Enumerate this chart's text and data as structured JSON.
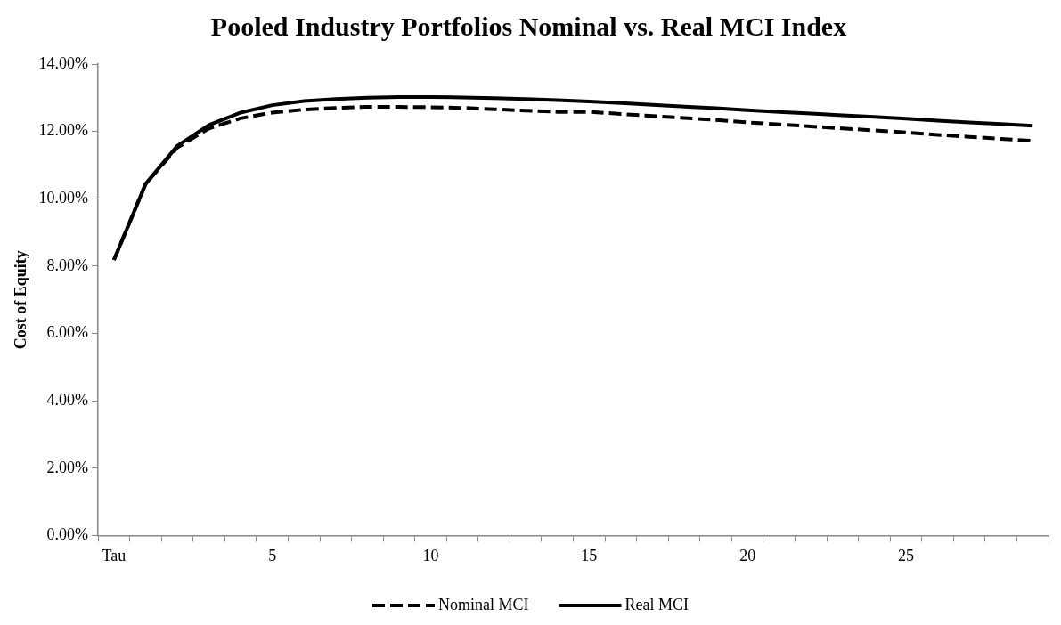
{
  "chart_data": {
    "type": "line",
    "title": "Pooled Industry Portfolios Nominal vs. Real MCI Index",
    "ylabel": "Cost of Equity",
    "categories": [
      "Tau",
      null,
      null,
      null,
      null,
      "5",
      null,
      null,
      null,
      null,
      "10",
      null,
      null,
      null,
      null,
      "15",
      null,
      null,
      null,
      null,
      "20",
      null,
      null,
      null,
      null,
      "25",
      null,
      null,
      null,
      null
    ],
    "series": [
      {
        "name": "Nominal MCI",
        "color": "#000000",
        "line_style": "dashed",
        "values": [
          8.18,
          10.44,
          11.52,
          12.09,
          12.39,
          12.56,
          12.65,
          12.7,
          12.73,
          12.73,
          12.72,
          12.7,
          12.66,
          12.62,
          12.58,
          12.58,
          12.52,
          12.46,
          12.4,
          12.34,
          12.27,
          12.21,
          12.15,
          12.09,
          12.03,
          11.97,
          11.9,
          11.84,
          11.78,
          11.72
        ]
      },
      {
        "name": "Real MCI",
        "color": "#000000",
        "line_style": "solid",
        "values": [
          8.18,
          10.44,
          11.57,
          12.19,
          12.56,
          12.78,
          12.9,
          12.96,
          13.0,
          13.02,
          13.02,
          13.01,
          12.99,
          12.96,
          12.93,
          12.89,
          12.84,
          12.79,
          12.74,
          12.69,
          12.63,
          12.58,
          12.53,
          12.48,
          12.43,
          12.38,
          12.32,
          12.27,
          12.22,
          12.17
        ]
      }
    ],
    "ylim": [
      0,
      14
    ],
    "yticks": [
      {
        "value": 0,
        "label": "0.00%"
      },
      {
        "value": 2,
        "label": "2.00%"
      },
      {
        "value": 4,
        "label": "4.00%"
      },
      {
        "value": 6,
        "label": "6.00%"
      },
      {
        "value": 8,
        "label": "8.00%"
      },
      {
        "value": 10,
        "label": "10.00%"
      },
      {
        "value": 12,
        "label": "12.00%"
      },
      {
        "value": 14,
        "label": "14.00%"
      }
    ],
    "grid": false,
    "legend": "bottom",
    "marker": "none"
  }
}
